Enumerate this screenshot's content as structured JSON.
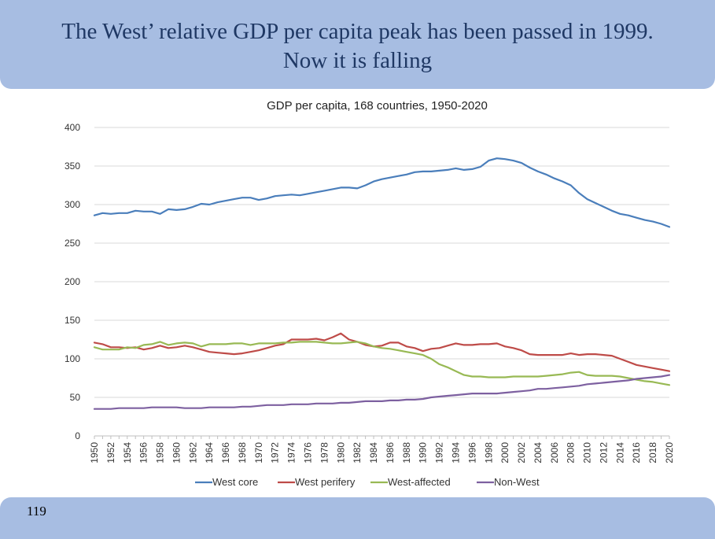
{
  "slide": {
    "title_line1": "The West’ relative GDP per capita peak has been passed in 1999.",
    "title_line2": "Now it is falling",
    "page_number": "119"
  },
  "colors": {
    "header_bg": "#a7bde2",
    "title_text": "#1f3864",
    "west_core": "#4a7ebb",
    "west_perifery": "#be4b48",
    "west_affected": "#98b954",
    "non_west": "#7d60a0",
    "gridline": "#d9d9d9"
  },
  "chart_data": {
    "type": "line",
    "title": "GDP per capita, 168 countries, 1950-2020",
    "xlabel": "",
    "ylabel": "",
    "ylim": [
      0,
      400
    ],
    "yticks": [
      0,
      50,
      100,
      150,
      200,
      250,
      300,
      350,
      400
    ],
    "legend_position": "bottom",
    "grid": true,
    "x": [
      1950,
      1951,
      1952,
      1953,
      1954,
      1955,
      1956,
      1957,
      1958,
      1959,
      1960,
      1961,
      1962,
      1963,
      1964,
      1965,
      1966,
      1967,
      1968,
      1969,
      1970,
      1971,
      1972,
      1973,
      1974,
      1975,
      1976,
      1977,
      1978,
      1979,
      1980,
      1981,
      1982,
      1983,
      1984,
      1985,
      1986,
      1987,
      1988,
      1989,
      1990,
      1991,
      1992,
      1993,
      1994,
      1995,
      1996,
      1997,
      1998,
      1999,
      2000,
      2001,
      2002,
      2003,
      2004,
      2005,
      2006,
      2007,
      2008,
      2009,
      2010,
      2011,
      2012,
      2013,
      2014,
      2015,
      2016,
      2017,
      2018,
      2019,
      2020
    ],
    "xtick_labels": [
      "1950",
      "1952",
      "1954",
      "1956",
      "1958",
      "1960",
      "1962",
      "1964",
      "1966",
      "1968",
      "1970",
      "1972",
      "1974",
      "1976",
      "1978",
      "1980",
      "1982",
      "1984",
      "1986",
      "1988",
      "1990",
      "1992",
      "1994",
      "1996",
      "1998",
      "2000",
      "2002",
      "2004",
      "2006",
      "2008",
      "2010",
      "2012",
      "2014",
      "2016",
      "2018",
      "2020"
    ],
    "series": [
      {
        "name": "West core",
        "color_key": "west_core",
        "values": [
          286,
          289,
          288,
          289,
          289,
          292,
          291,
          291,
          288,
          294,
          293,
          294,
          297,
          301,
          300,
          303,
          305,
          307,
          309,
          309,
          306,
          308,
          311,
          312,
          313,
          312,
          314,
          316,
          318,
          320,
          322,
          322,
          321,
          325,
          330,
          333,
          335,
          337,
          339,
          342,
          343,
          343,
          344,
          345,
          347,
          345,
          346,
          349,
          357,
          360,
          359,
          357,
          354,
          348,
          343,
          339,
          334,
          330,
          325,
          315,
          307,
          302,
          297,
          292,
          288,
          286,
          283,
          280,
          278,
          275,
          271
        ]
      },
      {
        "name": "West perifery",
        "color_key": "west_perifery",
        "values": [
          121,
          119,
          115,
          115,
          114,
          115,
          112,
          114,
          117,
          114,
          115,
          117,
          115,
          112,
          109,
          108,
          107,
          106,
          107,
          109,
          111,
          114,
          117,
          119,
          125,
          125,
          125,
          126,
          124,
          128,
          133,
          125,
          122,
          118,
          116,
          117,
          121,
          121,
          116,
          114,
          110,
          113,
          114,
          117,
          120,
          118,
          118,
          119,
          119,
          120,
          116,
          114,
          111,
          106,
          105,
          105,
          105,
          105,
          107,
          105,
          106,
          106,
          105,
          104,
          100,
          96,
          92,
          90,
          88,
          86,
          84
        ]
      },
      {
        "name": "West-affected",
        "color_key": "west_affected",
        "values": [
          115,
          112,
          112,
          112,
          115,
          114,
          118,
          119,
          122,
          118,
          120,
          121,
          120,
          116,
          119,
          119,
          119,
          120,
          120,
          118,
          120,
          120,
          120,
          121,
          121,
          122,
          122,
          122,
          121,
          120,
          120,
          121,
          122,
          120,
          116,
          114,
          113,
          111,
          109,
          107,
          105,
          100,
          93,
          89,
          84,
          79,
          77,
          77,
          76,
          76,
          76,
          77,
          77,
          77,
          77,
          78,
          79,
          80,
          82,
          83,
          79,
          78,
          78,
          78,
          77,
          75,
          73,
          71,
          70,
          68,
          66
        ]
      },
      {
        "name": "Non-West",
        "color_key": "non_west",
        "values": [
          35,
          35,
          35,
          36,
          36,
          36,
          36,
          37,
          37,
          37,
          37,
          36,
          36,
          36,
          37,
          37,
          37,
          37,
          38,
          38,
          39,
          40,
          40,
          40,
          41,
          41,
          41,
          42,
          42,
          42,
          43,
          43,
          44,
          45,
          45,
          45,
          46,
          46,
          47,
          47,
          48,
          50,
          51,
          52,
          53,
          54,
          55,
          55,
          55,
          55,
          56,
          57,
          58,
          59,
          61,
          61,
          62,
          63,
          64,
          65,
          67,
          68,
          69,
          70,
          71,
          72,
          74,
          75,
          76,
          77,
          79
        ]
      }
    ]
  }
}
